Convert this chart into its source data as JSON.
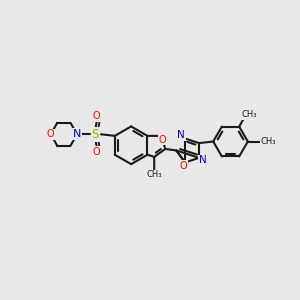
{
  "bg_color": "#e8e8e8",
  "bond_color": "#1a1a1a",
  "figsize": [
    3.0,
    3.0
  ],
  "dpi": 100,
  "O_color": "#ff0000",
  "N_color": "#0000cc",
  "S_color": "#aaaa00",
  "C_color": "#1a1a1a",
  "xlim": [
    -4.5,
    5.0
  ],
  "ylim": [
    -2.8,
    2.8
  ]
}
